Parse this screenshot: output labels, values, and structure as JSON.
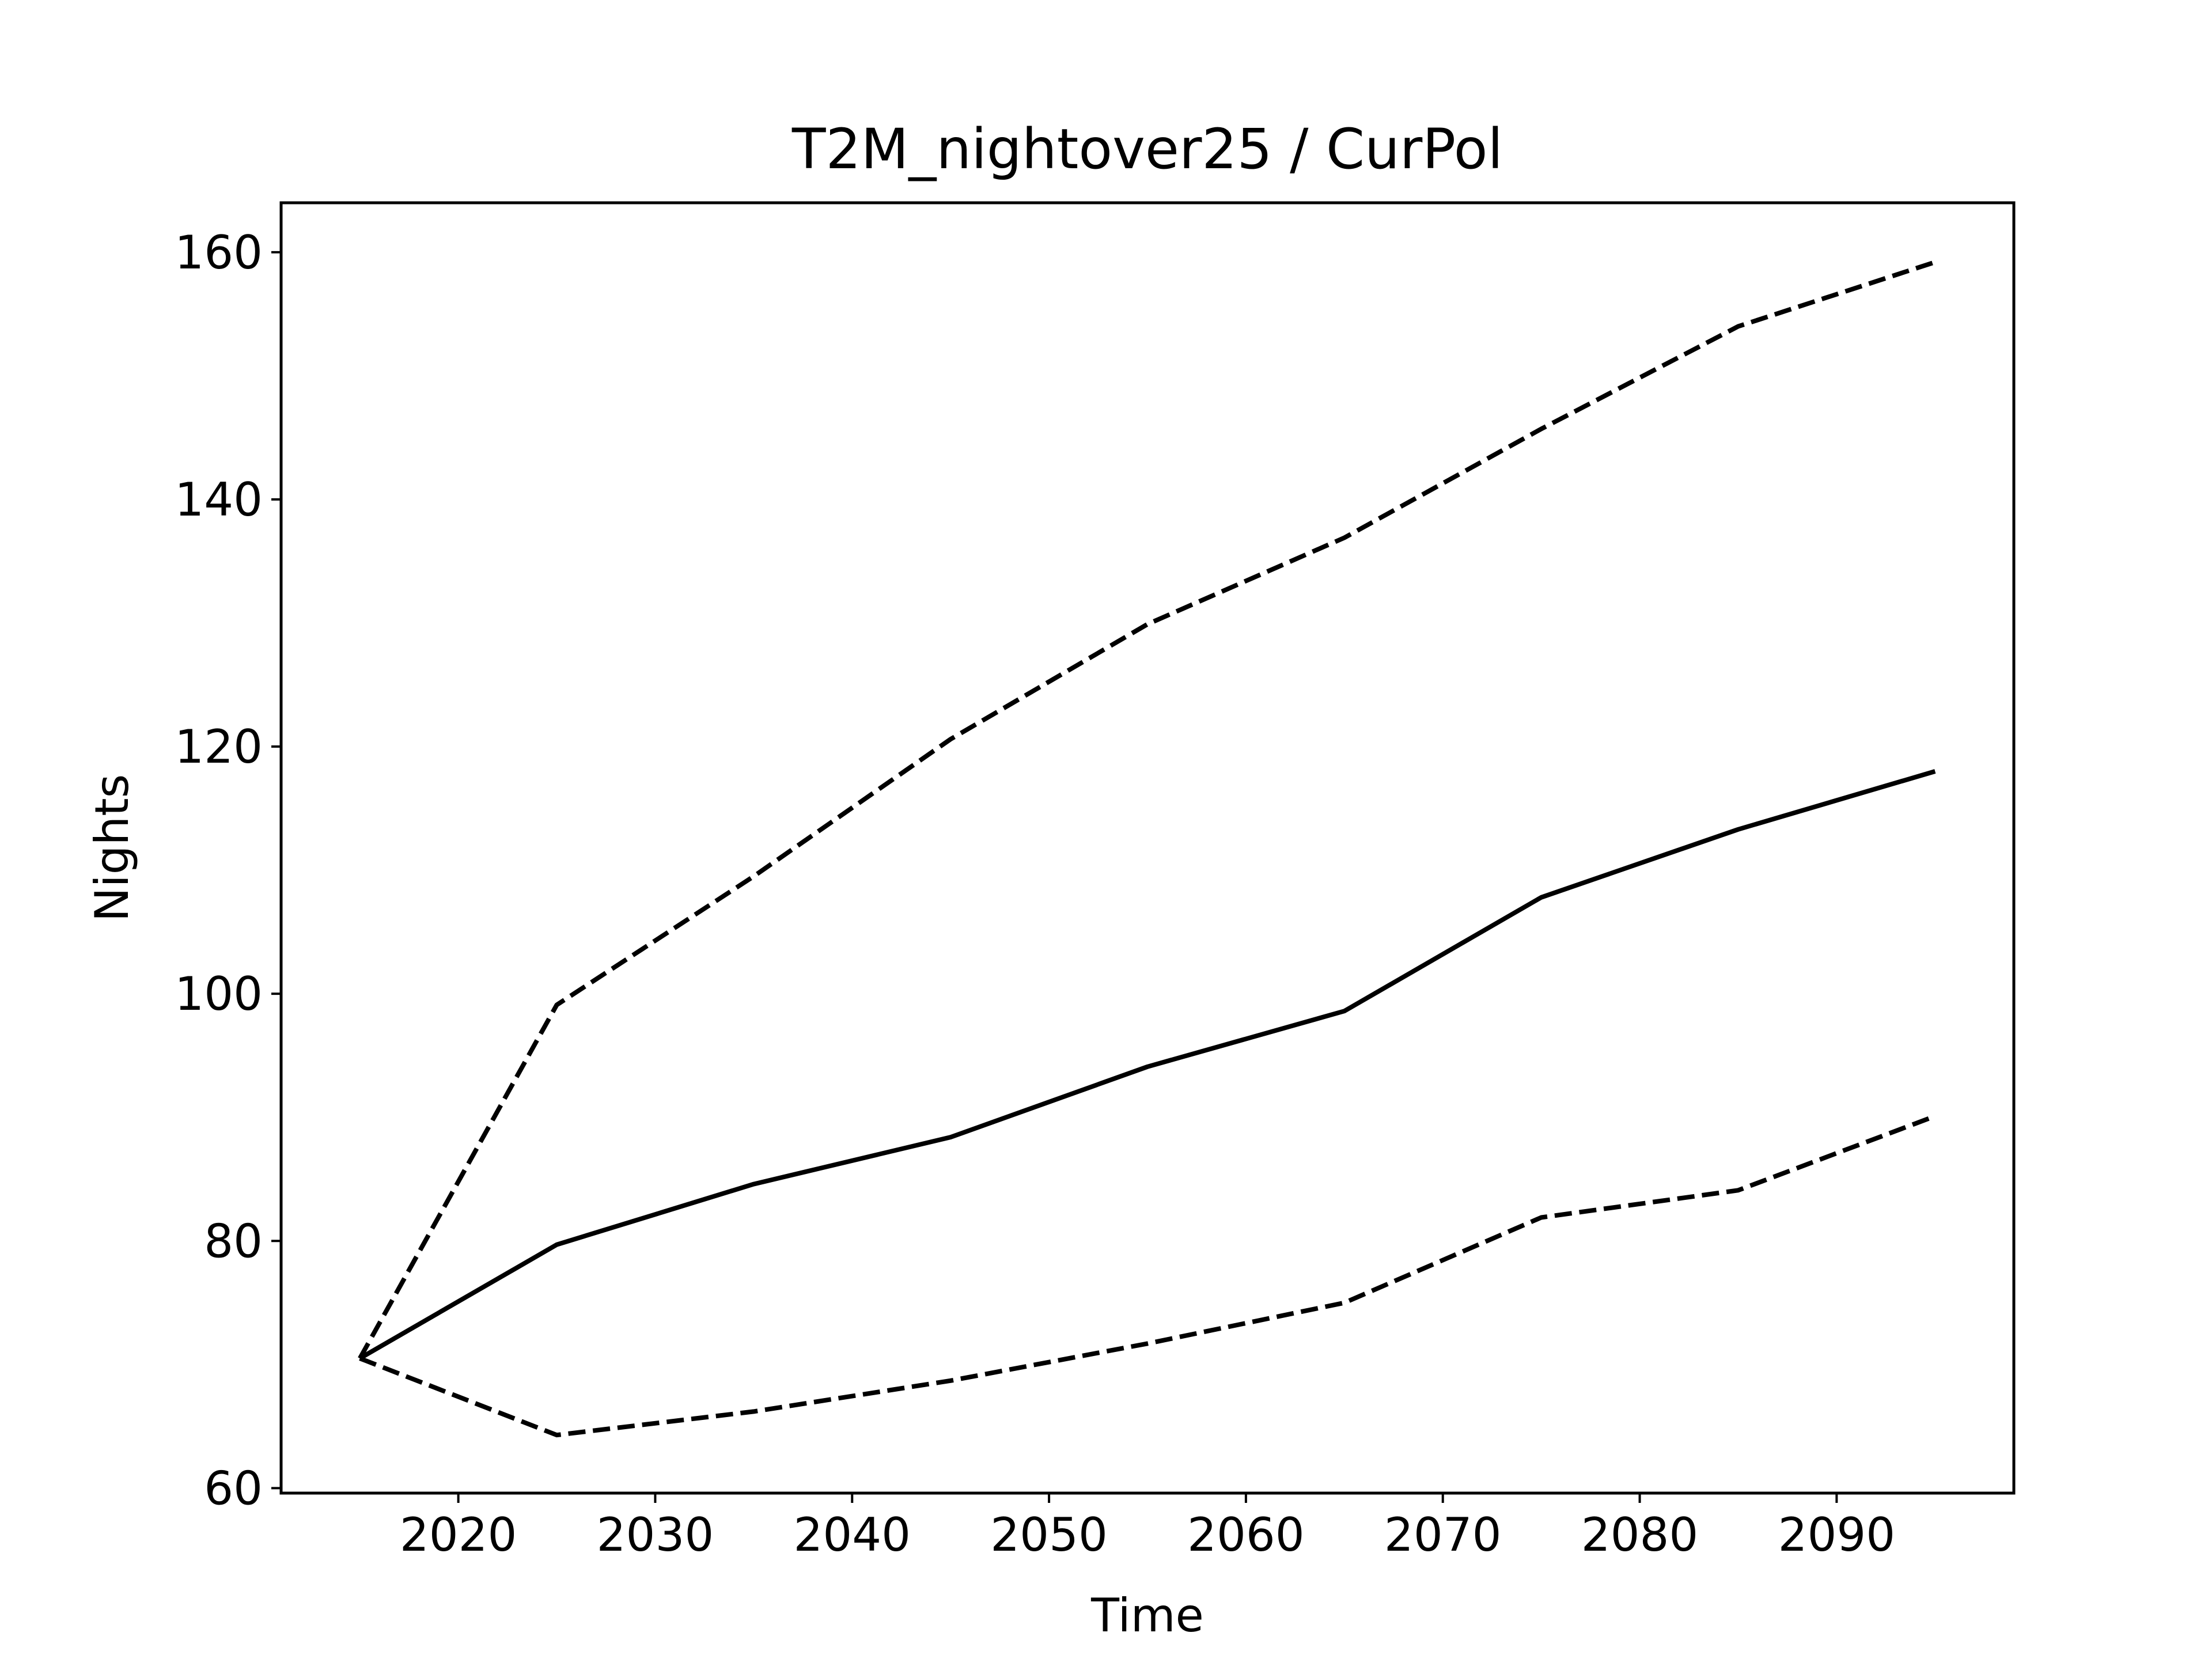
{
  "chart_data": {
    "type": "line",
    "title": "T2M_nightover25 / CurPol",
    "xlabel": "Time",
    "ylabel": "Nights",
    "xlim": [
      2011,
      2099
    ],
    "ylim": [
      59.6,
      164
    ],
    "xticks": [
      2020,
      2030,
      2040,
      2050,
      2060,
      2070,
      2080,
      2090
    ],
    "yticks": [
      60,
      80,
      100,
      120,
      140,
      160
    ],
    "grid": false,
    "legend": "none",
    "x": [
      2015,
      2025,
      2035,
      2045,
      2055,
      2065,
      2075,
      2085,
      2095
    ],
    "series": [
      {
        "style": "solid",
        "color": "#000000",
        "values": [
          70.5,
          79.7,
          84.6,
          88.4,
          94.1,
          98.6,
          107.8,
          113.3,
          118.0
        ]
      },
      {
        "style": "dashed",
        "color": "#000000",
        "values": [
          70.5,
          99.1,
          109.5,
          120.6,
          129.9,
          136.9,
          145.7,
          154.0,
          159.2
        ]
      },
      {
        "style": "dashed",
        "color": "#000000",
        "values": [
          70.5,
          64.3,
          66.2,
          68.7,
          71.7,
          75.0,
          81.9,
          84.1,
          90.1
        ]
      }
    ]
  }
}
